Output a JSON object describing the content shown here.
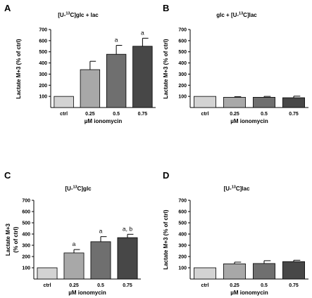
{
  "figure": {
    "x_axis_label": "µM ionomycin",
    "y_axis_label": "Lactate M+3 (% of ctrl)",
    "y_axis_label_wrapped": [
      "Lactate M+3",
      "(% of ctrl)"
    ]
  },
  "colors": {
    "ctrl": "#d3d3d3",
    "c025": "#a8a8a8",
    "c05": "#6f6f6f",
    "c075": "#474747"
  },
  "chart_data": [
    {
      "panel": "A",
      "type": "bar",
      "title_parts": [
        "[U-",
        "13",
        "C]glc + lac"
      ],
      "xlabel": "µM ionomycin",
      "ylabel": "Lactate M+3 (% of ctrl)",
      "categories": [
        "ctrl",
        "0.25",
        "0.5",
        "0.75"
      ],
      "values": [
        100,
        340,
        478,
        550
      ],
      "errors": [
        0,
        75,
        80,
        72
      ],
      "annotations": [
        "",
        "",
        "a",
        "a"
      ],
      "ylim": [
        0,
        700
      ],
      "yticks": [
        100,
        200,
        300,
        400,
        500,
        600,
        700
      ]
    },
    {
      "panel": "B",
      "type": "bar",
      "title_parts": [
        "glc + [U-",
        "13",
        "C]lac"
      ],
      "xlabel": "µM ionomycin",
      "ylabel": "Lactate M+3 (% of ctrl)",
      "categories": [
        "ctrl",
        "0.25",
        "0.5",
        "0.75"
      ],
      "values": [
        100,
        92,
        92,
        88
      ],
      "errors": [
        0,
        5,
        8,
        14
      ],
      "annotations": [
        "",
        "",
        "",
        ""
      ],
      "ylim": [
        0,
        700
      ],
      "yticks": [
        100,
        200,
        300,
        400,
        500,
        600,
        700
      ]
    },
    {
      "panel": "C",
      "type": "bar",
      "title_parts": [
        "[U-",
        "13",
        "C]glc"
      ],
      "xlabel": "µM ionomycin",
      "ylabel": "Lactate M+3 (% of ctrl)",
      "ylabel_lines": [
        "Lactate M+3",
        "(% of ctrl)"
      ],
      "categories": [
        "ctrl",
        "0.25",
        "0.5",
        "0.75"
      ],
      "values": [
        100,
        232,
        332,
        368
      ],
      "errors": [
        0,
        30,
        45,
        30
      ],
      "annotations": [
        "",
        "a",
        "a",
        "a, b"
      ],
      "ylim": [
        0,
        700
      ],
      "yticks": [
        100,
        200,
        300,
        400,
        500,
        600,
        700
      ]
    },
    {
      "panel": "D",
      "type": "bar",
      "title_parts": [
        "[U-",
        "13",
        "C]lac"
      ],
      "xlabel": "µM ionomycin",
      "ylabel": "Lactate M+3 (% of ctrl)",
      "categories": [
        "ctrl",
        "0.25",
        "0.5",
        "0.75"
      ],
      "values": [
        100,
        135,
        138,
        155
      ],
      "errors": [
        0,
        15,
        25,
        12
      ],
      "annotations": [
        "",
        "",
        "",
        ""
      ],
      "ylim": [
        0,
        700
      ],
      "yticks": [
        100,
        200,
        300,
        400,
        500,
        600,
        700
      ]
    }
  ]
}
